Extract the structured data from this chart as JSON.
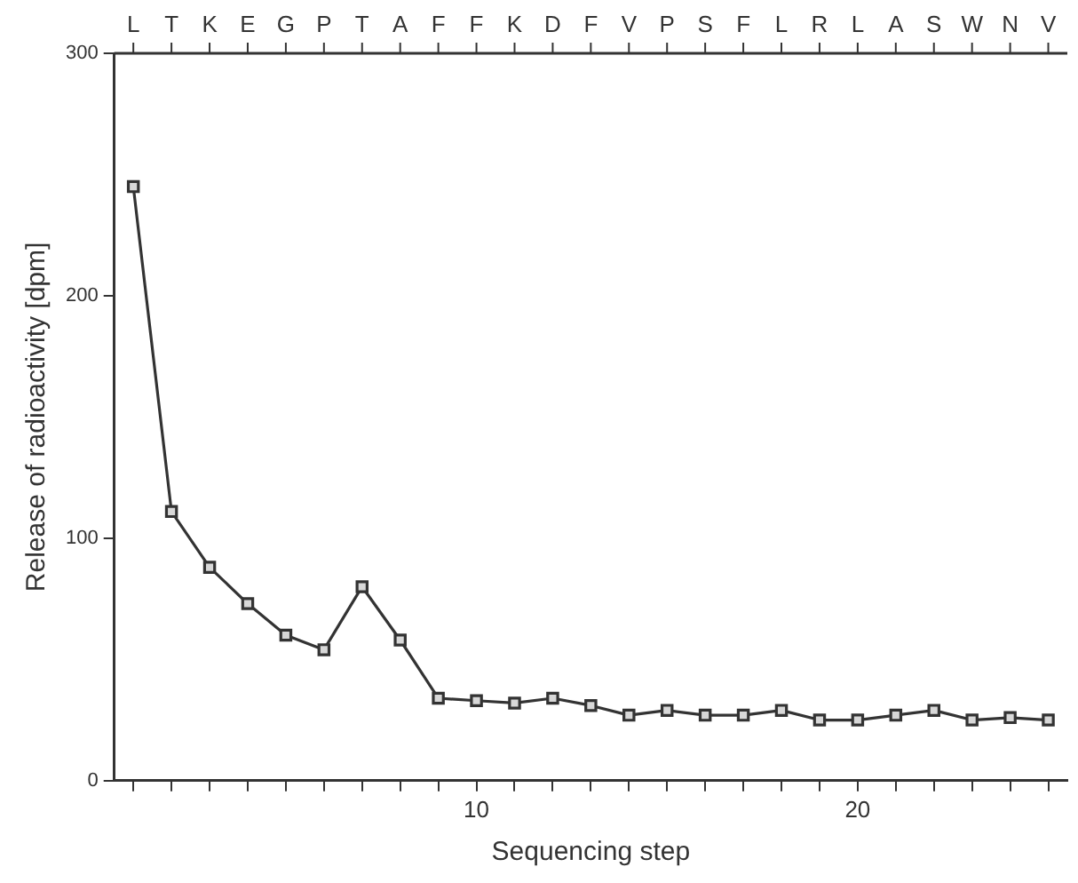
{
  "chart_data": {
    "type": "line",
    "xlabel": "Sequencing step",
    "ylabel": "Release of radioactivity [dpm]",
    "x": [
      1,
      2,
      3,
      4,
      5,
      6,
      7,
      8,
      9,
      10,
      11,
      12,
      13,
      14,
      15,
      16,
      17,
      18,
      19,
      20,
      21,
      22,
      23,
      24,
      25
    ],
    "series": [
      {
        "color": "#333333",
        "values": [
          245,
          111,
          88,
          73,
          60,
          54,
          80,
          58,
          34,
          33,
          32,
          34,
          31,
          27,
          29,
          27,
          27,
          29,
          25,
          25,
          27,
          29,
          25,
          26,
          25
        ]
      }
    ],
    "xlim": [
      0.5,
      25.5
    ],
    "ylim": [
      0,
      300
    ],
    "yticks": [
      0,
      100,
      200,
      300
    ],
    "xticks": [
      {
        "value": 1,
        "label": null
      },
      {
        "value": 2,
        "label": null
      },
      {
        "value": 3,
        "label": null
      },
      {
        "value": 4,
        "label": null
      },
      {
        "value": 5,
        "label": null
      },
      {
        "value": 6,
        "label": null
      },
      {
        "value": 7,
        "label": null
      },
      {
        "value": 8,
        "label": null
      },
      {
        "value": 9,
        "label": null
      },
      10,
      {
        "value": 11,
        "label": null
      },
      {
        "value": 12,
        "label": null
      },
      {
        "value": 13,
        "label": null
      },
      {
        "value": 14,
        "label": null
      },
      {
        "value": 15,
        "label": null
      },
      {
        "value": 16,
        "label": null
      },
      {
        "value": 17,
        "label": null
      },
      {
        "value": 18,
        "label": null
      },
      {
        "value": 19,
        "label": null
      },
      20,
      {
        "value": 21,
        "label": null
      },
      {
        "value": 22,
        "label": null
      },
      {
        "value": 23,
        "label": null
      },
      {
        "value": 24,
        "label": null
      },
      {
        "value": 25,
        "label": null
      }
    ],
    "annotations": [
      {
        "text": "L",
        "x": 1
      },
      {
        "text": "T",
        "x": 2
      },
      {
        "text": "K",
        "x": 3
      },
      {
        "text": "E",
        "x": 4
      },
      {
        "text": "G",
        "x": 5
      },
      {
        "text": "P",
        "x": 6
      },
      {
        "text": "T",
        "x": 7
      },
      {
        "text": "A",
        "x": 8
      },
      {
        "text": "F",
        "x": 9
      },
      {
        "text": "F",
        "x": 10
      },
      {
        "text": "K",
        "x": 11
      },
      {
        "text": "D",
        "x": 12
      },
      {
        "text": "F",
        "x": 13
      },
      {
        "text": "V",
        "x": 14
      },
      {
        "text": "P",
        "x": 15
      },
      {
        "text": "S",
        "x": 16
      },
      {
        "text": "F",
        "x": 17
      },
      {
        "text": "L",
        "x": 18
      },
      {
        "text": "R",
        "x": 19
      },
      {
        "text": "L",
        "x": 20
      },
      {
        "text": "A",
        "x": 21
      },
      {
        "text": "S",
        "x": 22
      },
      {
        "text": "W",
        "x": 23
      },
      {
        "text": "N",
        "x": 24
      },
      {
        "text": "V",
        "x": 25
      }
    ],
    "grid": false,
    "legend": false,
    "marker": "square",
    "line_style": "solid"
  }
}
